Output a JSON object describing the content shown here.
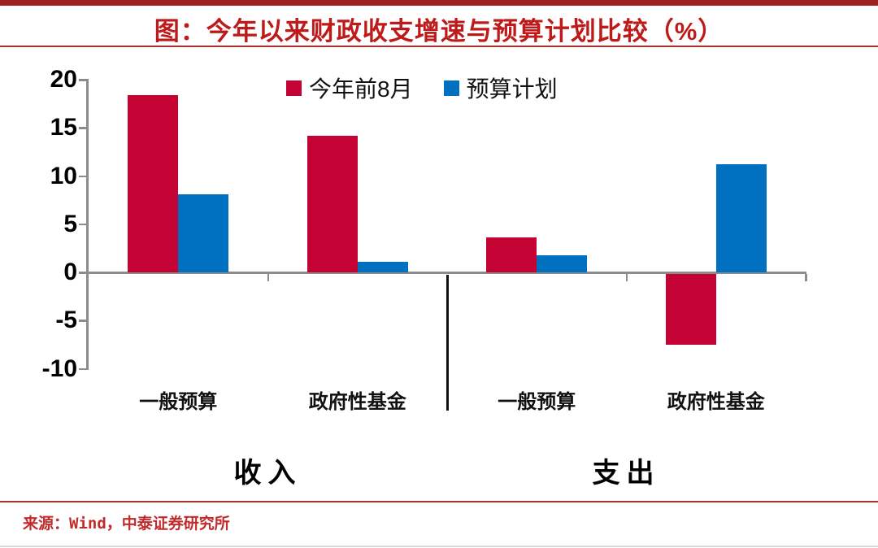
{
  "header": {
    "title": "图：今年以来财政收支增速与预算计划比较（%）"
  },
  "chart_data": {
    "type": "bar",
    "title": "图：今年以来财政收支增速与预算计划比较（%）",
    "categories": [
      "一般预算",
      "政府性基金",
      "一般预算",
      "政府性基金"
    ],
    "sections": [
      {
        "label": "收入",
        "groups": [
          0,
          1
        ]
      },
      {
        "label": "支出",
        "groups": [
          2,
          3
        ]
      }
    ],
    "series": [
      {
        "name": "今年前8月",
        "color": "#C40233",
        "values": [
          18.4,
          14.2,
          3.6,
          -7.3
        ]
      },
      {
        "name": "预算计划",
        "color": "#0070C0",
        "values": [
          8.1,
          1.1,
          1.8,
          11.2
        ]
      }
    ],
    "ylim": [
      -10,
      20
    ],
    "yticks": [
      -10,
      -5,
      0,
      5,
      10,
      15,
      20
    ],
    "xlabel": "",
    "ylabel": "",
    "grid": false,
    "legend_position": "top-center"
  },
  "footer": {
    "source": "来源：Wind，中泰证券研究所"
  },
  "colors": {
    "title_red": "#BE1A1A",
    "rule_red": "#9E2222",
    "thin_rule_red": "#B03030",
    "bar_red": "#C40233",
    "bar_blue": "#0070C0",
    "axis_gray": "#8C8C8C",
    "divider_black": "#111111",
    "source_red": "#C12B2B"
  }
}
